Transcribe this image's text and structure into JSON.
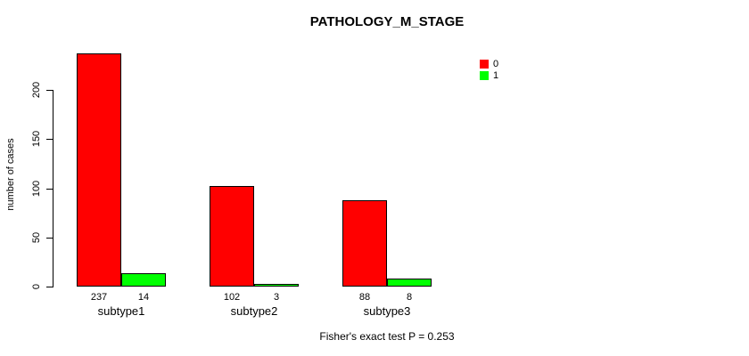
{
  "chart_data": {
    "type": "bar",
    "title": "PATHOLOGY_M_STAGE",
    "xlabel": "",
    "ylabel": "number of cases",
    "categories": [
      "subtype1",
      "subtype2",
      "subtype3"
    ],
    "series": [
      {
        "name": "0",
        "color": "#ff0000",
        "values": [
          237,
          102,
          88
        ]
      },
      {
        "name": "1",
        "color": "#00ff00",
        "values": [
          14,
          3,
          8
        ]
      }
    ],
    "bar_value_labels": [
      [
        "237",
        "14"
      ],
      [
        "102",
        "3"
      ],
      [
        "88",
        "8"
      ]
    ],
    "yticks": [
      0,
      50,
      100,
      150,
      200
    ],
    "ylim": [
      0,
      240
    ],
    "grid": false,
    "legend_position": "top-right",
    "annotation": "Fisher's exact test P = 0.253",
    "bar_border_color": "#000000",
    "background_color": "#ffffff"
  }
}
